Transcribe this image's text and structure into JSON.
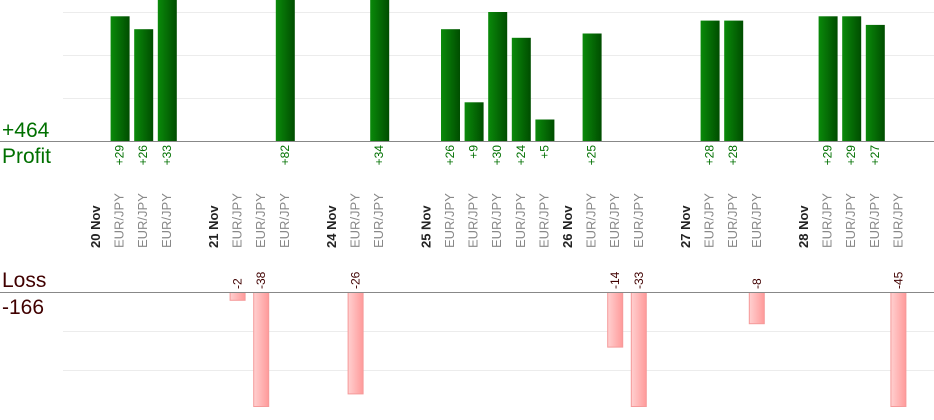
{
  "summary": {
    "profit_total": "+464",
    "profit_label": "Profit",
    "loss_label": "Loss",
    "loss_total": "-166"
  },
  "colors": {
    "profit_bar": "#006400",
    "profit_text": "#007000",
    "loss_bar": "#ffb0b0",
    "loss_text": "#400000",
    "date_text": "#222222",
    "symbol_text": "#888888"
  },
  "chart_data": {
    "type": "bar",
    "grid": true,
    "grid_step": 10,
    "columns": [
      {
        "date": "20 Nov"
      },
      {
        "symbol": "EUR/JPY",
        "value": 29,
        "label": "+29"
      },
      {
        "symbol": "EUR/JPY",
        "value": 26,
        "label": "+26"
      },
      {
        "symbol": "EUR/JPY",
        "value": 33,
        "label": "+33"
      },
      {},
      {
        "date": "21 Nov"
      },
      {
        "symbol": "EUR/JPY",
        "value": -2,
        "label": "-2"
      },
      {
        "symbol": "EUR/JPY",
        "value": -38,
        "label": "-38"
      },
      {
        "symbol": "EUR/JPY",
        "value": 82,
        "label": "+82"
      },
      {},
      {
        "date": "24 Nov"
      },
      {
        "symbol": "EUR/JPY",
        "value": -26,
        "label": "-26"
      },
      {
        "symbol": "EUR/JPY",
        "value": 34,
        "label": "+34"
      },
      {},
      {
        "date": "25 Nov"
      },
      {
        "symbol": "EUR/JPY",
        "value": 26,
        "label": "+26"
      },
      {
        "symbol": "EUR/JPY",
        "value": 9,
        "label": "+9"
      },
      {
        "symbol": "EUR/JPY",
        "value": 30,
        "label": "+30"
      },
      {
        "symbol": "EUR/JPY",
        "value": 24,
        "label": "+24"
      },
      {
        "symbol": "EUR/JPY",
        "value": 5,
        "label": "+5"
      },
      {
        "date": "26 Nov"
      },
      {
        "symbol": "EUR/JPY",
        "value": 25,
        "label": "+25"
      },
      {
        "symbol": "EUR/JPY",
        "value": -14,
        "label": "-14"
      },
      {
        "symbol": "EUR/JPY",
        "value": -33,
        "label": "-33"
      },
      {},
      {
        "date": "27 Nov"
      },
      {
        "symbol": "EUR/JPY",
        "value": 28,
        "label": "+28"
      },
      {
        "symbol": "EUR/JPY",
        "value": 28,
        "label": "+28"
      },
      {
        "symbol": "EUR/JPY",
        "value": -8,
        "label": "-8"
      },
      {},
      {
        "date": "28 Nov"
      },
      {
        "symbol": "EUR/JPY",
        "value": 29,
        "label": "+29"
      },
      {
        "symbol": "EUR/JPY",
        "value": 29,
        "label": "+29"
      },
      {
        "symbol": "EUR/JPY",
        "value": 27,
        "label": "+27"
      },
      {
        "symbol": "EUR/JPY",
        "value": -45,
        "label": "-45"
      }
    ]
  }
}
